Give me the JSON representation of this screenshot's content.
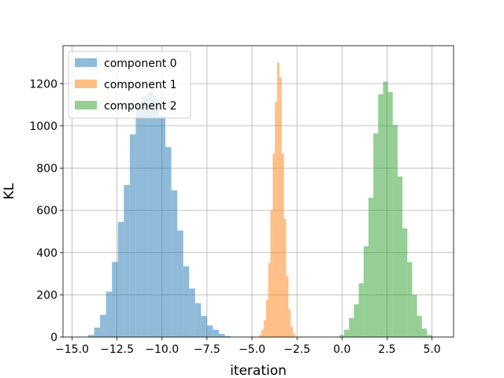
{
  "chart_data": {
    "type": "bar",
    "xlabel": "iteration",
    "ylabel": "KL",
    "xlim": [
      -15.5,
      6.2
    ],
    "ylim": [
      0,
      1380
    ],
    "xticks": [
      -15.0,
      -12.5,
      -10.0,
      -7.5,
      -5.0,
      -2.5,
      0.0,
      2.5,
      5.0
    ],
    "xtick_labels": [
      "−15.0",
      "−12.5",
      "−10.0",
      "−7.5",
      "−5.0",
      "−2.5",
      "0.0",
      "2.5",
      "5.0"
    ],
    "yticks": [
      0,
      200,
      400,
      600,
      800,
      1000,
      1200
    ],
    "ytick_labels": [
      "0",
      "200",
      "400",
      "600",
      "800",
      "1000",
      "1200"
    ],
    "grid": true,
    "legend_position": "top-left",
    "series": [
      {
        "name": "component 0",
        "color": "#1f77b4",
        "bin_start": -14.1,
        "bin_width": 0.33,
        "counts": [
          10,
          45,
          105,
          215,
          355,
          545,
          720,
          960,
          1095,
          1140,
          1160,
          1125,
          1045,
          900,
          695,
          505,
          335,
          230,
          160,
          100,
          55,
          35,
          15,
          5
        ]
      },
      {
        "name": "component 1",
        "color": "#ff7f0e",
        "bin_start": -4.6,
        "bin_width": 0.125,
        "counts": [
          10,
          35,
          80,
          175,
          350,
          600,
          870,
          1115,
          1300,
          1230,
          870,
          560,
          290,
          130,
          50,
          15
        ]
      },
      {
        "name": "component 2",
        "color": "#2ca02c",
        "bin_start": -0.15,
        "bin_width": 0.27,
        "counts": [
          10,
          35,
          90,
          155,
          255,
          430,
          660,
          965,
          1150,
          1210,
          1160,
          1005,
          760,
          515,
          355,
          200,
          100,
          40,
          10
        ]
      }
    ]
  }
}
